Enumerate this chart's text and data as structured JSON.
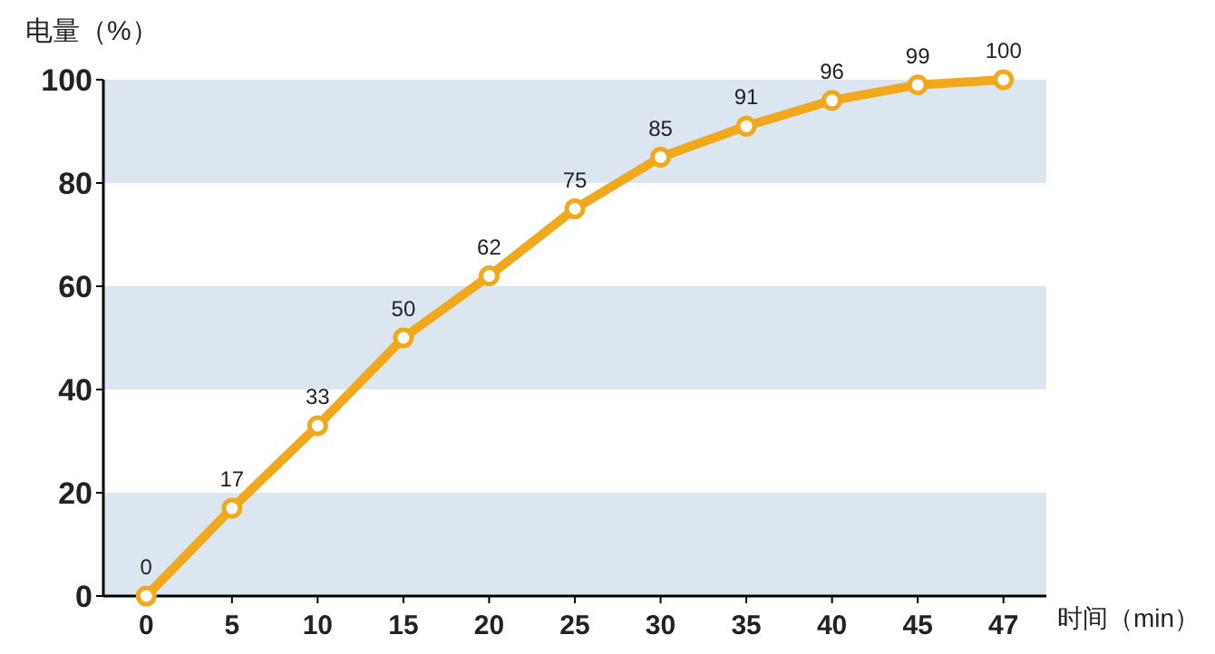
{
  "chart_data": {
    "type": "line",
    "ylabel": "电量（%）",
    "xlabel": "时间（min）",
    "categories": [
      "0",
      "5",
      "10",
      "15",
      "20",
      "25",
      "30",
      "35",
      "40",
      "45",
      "47"
    ],
    "values": [
      0,
      17,
      33,
      50,
      62,
      75,
      85,
      91,
      96,
      99,
      100
    ],
    "color": "#f0a81c",
    "marker": "circle",
    "data_labels": true,
    "ylim": [
      0,
      100
    ],
    "yticks": [
      0,
      20,
      40,
      60,
      80,
      100
    ],
    "bands": [
      {
        "axis": "y",
        "from": 0,
        "to": 20,
        "color": "#dce6f1"
      },
      {
        "axis": "y",
        "from": 40,
        "to": 60,
        "color": "#dce6f1"
      },
      {
        "axis": "y",
        "from": 80,
        "to": 100,
        "color": "#dce6f1"
      }
    ]
  }
}
